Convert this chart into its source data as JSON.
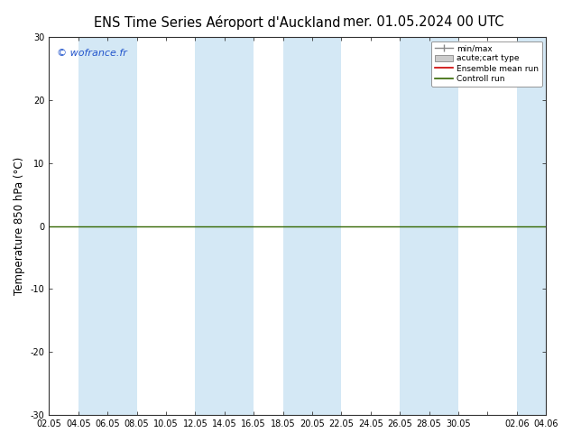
{
  "title_left": "ENS Time Series Aéroport d'Auckland",
  "title_right": "mer. 01.05.2024 00 UTC",
  "ylabel": "Temperature 850 hPa (°C)",
  "watermark": "© wofrance.fr",
  "ylim": [
    -30,
    30
  ],
  "yticks": [
    -30,
    -20,
    -10,
    0,
    10,
    20,
    30
  ],
  "xtick_labels": [
    "02.05",
    "04.05",
    "06.05",
    "08.05",
    "10.05",
    "12.05",
    "14.05",
    "16.05",
    "18.05",
    "20.05",
    "22.05",
    "24.05",
    "26.05",
    "28.05",
    "30.05",
    "",
    "02.06",
    "04.06"
  ],
  "background_color": "#ffffff",
  "plot_bg_color": "#ffffff",
  "band_color": "#d4e8f5",
  "legend_entries": [
    "min/max",
    "acute;cart type",
    "Ensemble mean run",
    "Controll run"
  ],
  "zero_line_color": "#336600",
  "title_fontsize": 10.5,
  "tick_fontsize": 7,
  "ylabel_fontsize": 8.5,
  "band_starts": [
    1,
    5,
    7,
    11,
    15
  ],
  "band_ends": [
    3,
    7,
    9,
    13,
    17
  ]
}
